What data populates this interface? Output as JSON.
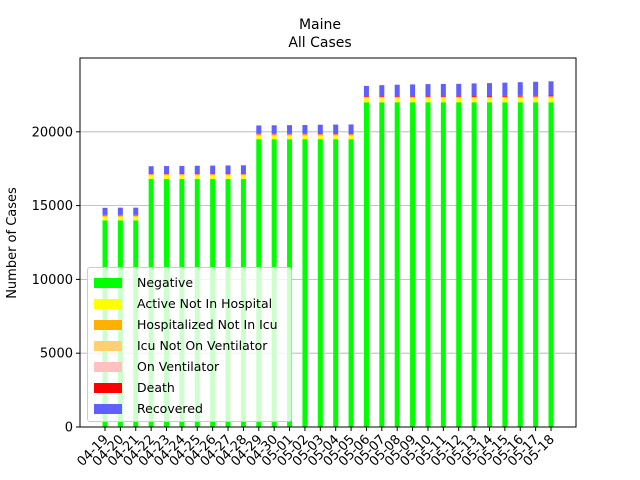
{
  "chart_data": {
    "type": "bar",
    "stacked": true,
    "title": "Maine",
    "subtitle": "All Cases",
    "xlabel": "",
    "ylabel": "Number of Cases",
    "ylim": [
      0,
      25000
    ],
    "yticks": [
      0,
      5000,
      10000,
      15000,
      20000
    ],
    "ytick_labels": [
      "0",
      "5000",
      "10000",
      "15000",
      "20000"
    ],
    "grid": "horizontal",
    "legend_position": "lower-left",
    "categories": [
      "04-19",
      "04-20",
      "04-21",
      "04-22",
      "04-23",
      "04-24",
      "04-25",
      "04-26",
      "04-27",
      "04-28",
      "04-29",
      "04-30",
      "05-01",
      "05-02",
      "05-03",
      "05-04",
      "05-05",
      "05-06",
      "05-07",
      "05-08",
      "05-09",
      "05-10",
      "05-11",
      "05-12",
      "05-13",
      "05-14",
      "05-15",
      "05-16",
      "05-17",
      "05-18"
    ],
    "series": [
      {
        "name": "Negative",
        "color": "#00ff00",
        "values": [
          14000,
          14000,
          14000,
          16800,
          16800,
          16800,
          16800,
          16800,
          16800,
          16800,
          19500,
          19500,
          19500,
          19500,
          19500,
          19500,
          19500,
          22000,
          22000,
          22000,
          22000,
          22000,
          22000,
          22000,
          22000,
          22000,
          22000,
          22000,
          22000,
          22000
        ]
      },
      {
        "name": "Active Not In Hospital",
        "color": "#ffff00",
        "values": [
          250,
          250,
          250,
          250,
          250,
          250,
          250,
          250,
          250,
          250,
          250,
          250,
          250,
          250,
          250,
          250,
          250,
          280,
          280,
          280,
          280,
          280,
          280,
          280,
          280,
          280,
          290,
          300,
          310,
          320
        ]
      },
      {
        "name": "Hospitalized Not In Icu",
        "color": "#ffb000",
        "values": [
          60,
          60,
          60,
          60,
          60,
          60,
          60,
          60,
          60,
          60,
          60,
          60,
          60,
          60,
          60,
          60,
          60,
          60,
          60,
          60,
          60,
          60,
          60,
          60,
          60,
          60,
          60,
          60,
          60,
          60
        ]
      },
      {
        "name": "Icu Not On Ventilator",
        "color": "#ffd070",
        "values": [
          10,
          10,
          10,
          10,
          10,
          10,
          10,
          10,
          10,
          10,
          10,
          10,
          10,
          10,
          10,
          10,
          10,
          10,
          10,
          10,
          10,
          10,
          10,
          10,
          10,
          10,
          10,
          10,
          10,
          10
        ]
      },
      {
        "name": "On Ventilator",
        "color": "#ffc0c0",
        "values": [
          10,
          10,
          10,
          10,
          10,
          10,
          10,
          10,
          10,
          10,
          10,
          10,
          10,
          10,
          10,
          10,
          10,
          10,
          10,
          10,
          10,
          10,
          10,
          10,
          10,
          10,
          10,
          10,
          10,
          10
        ]
      },
      {
        "name": "Death",
        "color": "#ff0000",
        "values": [
          40,
          40,
          40,
          40,
          40,
          40,
          40,
          40,
          40,
          40,
          40,
          40,
          40,
          40,
          50,
          50,
          50,
          50,
          50,
          50,
          50,
          50,
          50,
          50,
          60,
          60,
          60,
          60,
          60,
          60
        ]
      },
      {
        "name": "Recovered",
        "color": "#6060ff",
        "values": [
          480,
          490,
          490,
          500,
          510,
          520,
          530,
          540,
          550,
          560,
          560,
          570,
          580,
          590,
          600,
          610,
          620,
          700,
          750,
          780,
          800,
          820,
          830,
          840,
          860,
          880,
          900,
          920,
          940,
          960
        ]
      }
    ]
  }
}
